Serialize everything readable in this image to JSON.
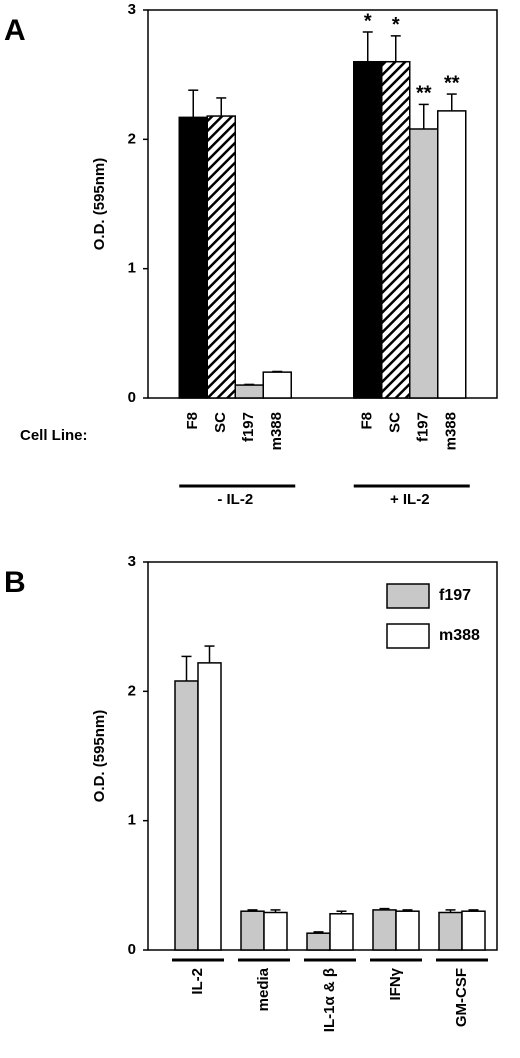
{
  "chart_data": [
    {
      "type": "bar",
      "panel": "A",
      "y_label": "O.D. (595nm)",
      "row_label": "Cell Line:",
      "ylim": [
        0,
        3
      ],
      "yticks": [
        0,
        1,
        2,
        3
      ],
      "groups": [
        "- IL-2",
        "+ IL-2"
      ],
      "series": [
        {
          "name": "F8",
          "color": "#000000",
          "values": [
            2.17,
            2.6
          ],
          "errors": [
            0.21,
            0.23
          ],
          "annotations": [
            null,
            "*"
          ]
        },
        {
          "name": "SC",
          "color": "#ffffff",
          "pattern": "hatch",
          "values": [
            2.18,
            2.6
          ],
          "errors": [
            0.14,
            0.2
          ],
          "annotations": [
            null,
            "*"
          ]
        },
        {
          "name": "f197",
          "color": "#c8c8c8",
          "values": [
            0.1,
            2.08
          ],
          "errors": [
            0.005,
            0.19
          ],
          "annotations": [
            null,
            "**"
          ]
        },
        {
          "name": "m388",
          "color": "#ffffff",
          "values": [
            0.2,
            2.22
          ],
          "errors": [
            0.005,
            0.13
          ],
          "annotations": [
            null,
            "**"
          ]
        }
      ]
    },
    {
      "type": "bar",
      "panel": "B",
      "y_label": "O.D. (595nm)",
      "ylim": [
        0,
        3
      ],
      "yticks": [
        0,
        1,
        2,
        3
      ],
      "legend": "top-right",
      "categories": [
        "IL-2",
        "media",
        "IL-1α & β",
        "IFNγ",
        "GM-CSF"
      ],
      "series": [
        {
          "name": "f197",
          "color": "#c8c8c8",
          "values": [
            2.08,
            0.3,
            0.13,
            0.31,
            0.29
          ],
          "errors": [
            0.19,
            0.01,
            0.01,
            0.01,
            0.02
          ]
        },
        {
          "name": "m388",
          "color": "#ffffff",
          "values": [
            2.22,
            0.29,
            0.28,
            0.3,
            0.3
          ],
          "errors": [
            0.13,
            0.02,
            0.02,
            0.01,
            0.01
          ]
        }
      ]
    }
  ]
}
